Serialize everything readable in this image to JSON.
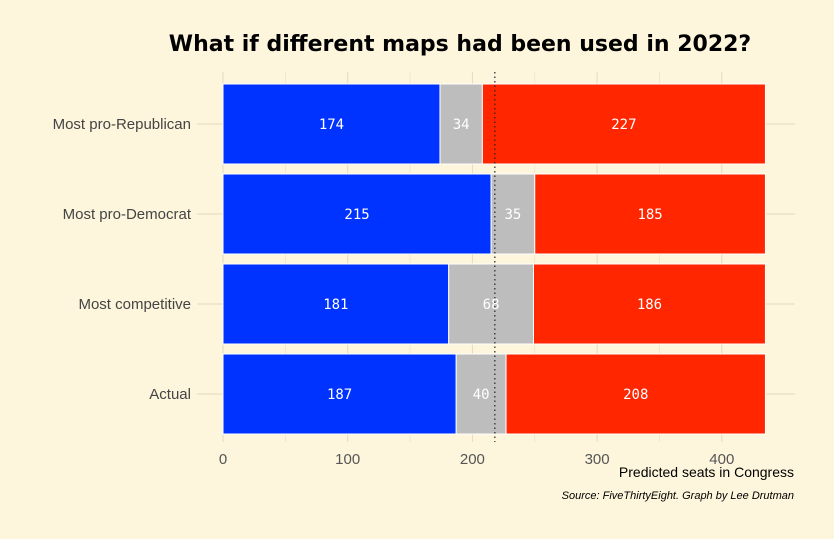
{
  "chart_data": {
    "type": "bar",
    "orientation": "horizontal",
    "stacked": true,
    "title": "What if different maps had been used in 2022?",
    "xlabel": "Predicted seats in Congress",
    "source": "Source: FiveThirtyEight. Graph by Lee Drutman",
    "categories": [
      "Most pro-Republican",
      "Most pro-Democrat",
      "Most competitive",
      "Actual"
    ],
    "series": [
      {
        "color": "#0033ff",
        "values": [
          174,
          215,
          181,
          187
        ]
      },
      {
        "color": "#bdbdbd",
        "values": [
          34,
          35,
          68,
          40
        ]
      },
      {
        "color": "#ff2600",
        "values": [
          227,
          185,
          186,
          208
        ]
      }
    ],
    "xlim": [
      0,
      435
    ],
    "xticks": [
      0,
      100,
      200,
      300,
      400
    ],
    "reference_line": 218,
    "grid": true
  }
}
